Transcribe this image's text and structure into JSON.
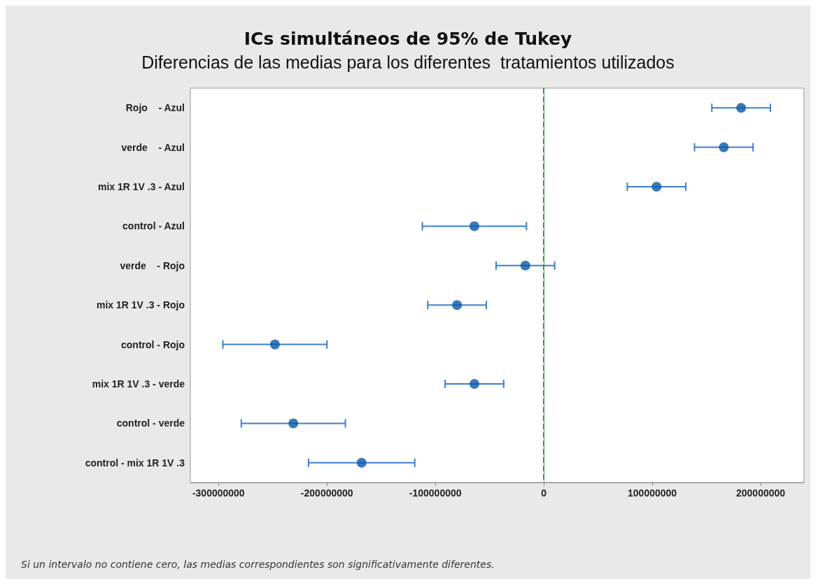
{
  "chart_data": {
    "type": "scatter",
    "orientation": "horizontal",
    "title": "ICs simultáneos de 95% de Tukey",
    "subtitle": "Diferencias de las medias para los diferentes  tratamientos utilizados",
    "categories": [
      "Rojo    - Azul",
      "verde    - Azul",
      "mix 1R 1V .3 - Azul",
      "control - Azul",
      "verde    - Rojo",
      "mix 1R 1V .3 - Rojo",
      "control - Rojo",
      "mix 1R 1V .3 - verde",
      "control - verde",
      "control - mix 1R 1V .3"
    ],
    "series": [
      {
        "color": "#0a56a8",
        "values": [
          182000000,
          166000000,
          104000000,
          -64000000,
          -17000000,
          -80000000,
          -248000000,
          -64000000,
          -231000000,
          -168000000
        ],
        "errors": [
          27000000,
          27000000,
          27000000,
          48000000,
          27000000,
          27000000,
          48000000,
          27000000,
          48000000,
          49000000
        ]
      }
    ],
    "xlim": [
      -326000000,
      240000000
    ],
    "xticks": [
      -300000000,
      -200000000,
      -100000000,
      0,
      100000000,
      200000000
    ],
    "ref_lines": [
      {
        "axis": "x",
        "value": 0,
        "color": "#2ca02c",
        "line_style": "dashed"
      }
    ],
    "marker": "circle",
    "grid": false,
    "annotations": [
      "Si un intervalo no contiene cero, las medias correspondientes son significativamente diferentes."
    ]
  }
}
